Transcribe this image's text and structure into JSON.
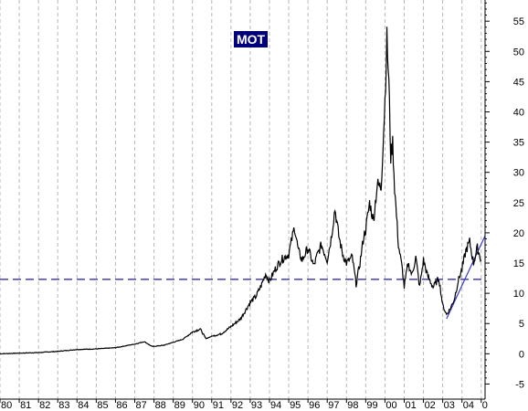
{
  "chart_data": {
    "type": "line",
    "title": "MOT",
    "xlabel": "",
    "ylabel": "",
    "x_tick_labels": [
      "80",
      "81",
      "82",
      "83",
      "84",
      "85",
      "86",
      "87",
      "88",
      "89",
      "90",
      "91",
      "92",
      "93",
      "94",
      "95",
      "96",
      "97",
      "98",
      "99",
      "00",
      "01",
      "02",
      "03",
      "04",
      "0"
    ],
    "y_tick_labels": [
      "55",
      "50",
      "45",
      "40",
      "35",
      "30",
      "25",
      "20",
      "15",
      "10",
      "5",
      "0",
      "-5"
    ],
    "y_ticks": [
      55,
      50,
      45,
      40,
      35,
      30,
      25,
      20,
      15,
      10,
      5,
      0,
      -5
    ],
    "ylim": [
      -7.5,
      58.5
    ],
    "xlim": [
      1980.0,
      2005.2
    ],
    "grid": "vertical dashed lines at each year",
    "y_axis_position": "right",
    "colors": {
      "price": "#000000",
      "support_line": "#1a1aa0",
      "trend_line": "#3a3ad0",
      "ticker_bg": "#00007a"
    },
    "series": [
      {
        "x": [
          1980.0,
          1981.0,
          1982.0,
          1983.0,
          1984.0,
          1985.0,
          1986.0,
          1987.0,
          1987.5,
          1987.9,
          1988.5,
          1989.0,
          1989.5,
          1990.0,
          1990.4,
          1990.7,
          1991.0,
          1991.5,
          1992.0,
          1992.5,
          1993.0,
          1993.3,
          1993.6,
          1993.8,
          1994.0,
          1994.3,
          1994.6,
          1995.0,
          1995.3,
          1995.5,
          1995.7,
          1996.0,
          1996.3,
          1996.5,
          1996.7,
          1997.0,
          1997.2,
          1997.4,
          1997.6,
          1997.8,
          1998.0,
          1998.3,
          1998.5,
          1998.7,
          1998.9,
          1999.0,
          1999.2,
          1999.4,
          1999.6,
          1999.8,
          2000.0,
          2000.1,
          2000.2,
          2000.3,
          2000.4,
          2000.5,
          2000.7,
          2000.9,
          2001.0,
          2001.2,
          2001.4,
          2001.6,
          2001.8,
          2002.0,
          2002.2,
          2002.5,
          2002.8,
          2003.0,
          2003.2,
          2003.4,
          2003.6,
          2003.8,
          2004.0,
          2004.2,
          2004.4,
          2004.6,
          2004.8,
          2005.0
        ],
        "values": [
          0.0,
          0.1,
          0.2,
          0.4,
          0.7,
          0.8,
          1.0,
          1.6,
          2.0,
          1.2,
          1.4,
          1.9,
          2.4,
          3.6,
          4.1,
          2.5,
          2.9,
          3.3,
          4.5,
          5.8,
          8.5,
          9.5,
          11.5,
          13.2,
          12.0,
          14.0,
          15.5,
          16.5,
          21.0,
          17.0,
          15.5,
          17.5,
          14.5,
          16.5,
          18.0,
          15.5,
          19.0,
          24.0,
          19.5,
          16.5,
          15.0,
          16.0,
          11.5,
          15.0,
          19.5,
          20.5,
          25.0,
          22.0,
          28.0,
          27.5,
          42.0,
          52.0,
          45.0,
          32.5,
          35.0,
          27.5,
          18.0,
          14.0,
          11.0,
          15.0,
          13.0,
          16.0,
          11.0,
          15.5,
          13.0,
          11.0,
          12.5,
          8.0,
          6.5,
          7.5,
          9.0,
          12.0,
          14.0,
          17.0,
          18.5,
          15.0,
          17.5,
          15.5
        ]
      }
    ],
    "annotations": [
      {
        "type": "horizontal_line",
        "y": 12.3,
        "style": "dashed"
      },
      {
        "type": "trend_line",
        "points": [
          [
            2003.2,
            5.8
          ],
          [
            2005.2,
            19.5
          ]
        ]
      }
    ]
  }
}
